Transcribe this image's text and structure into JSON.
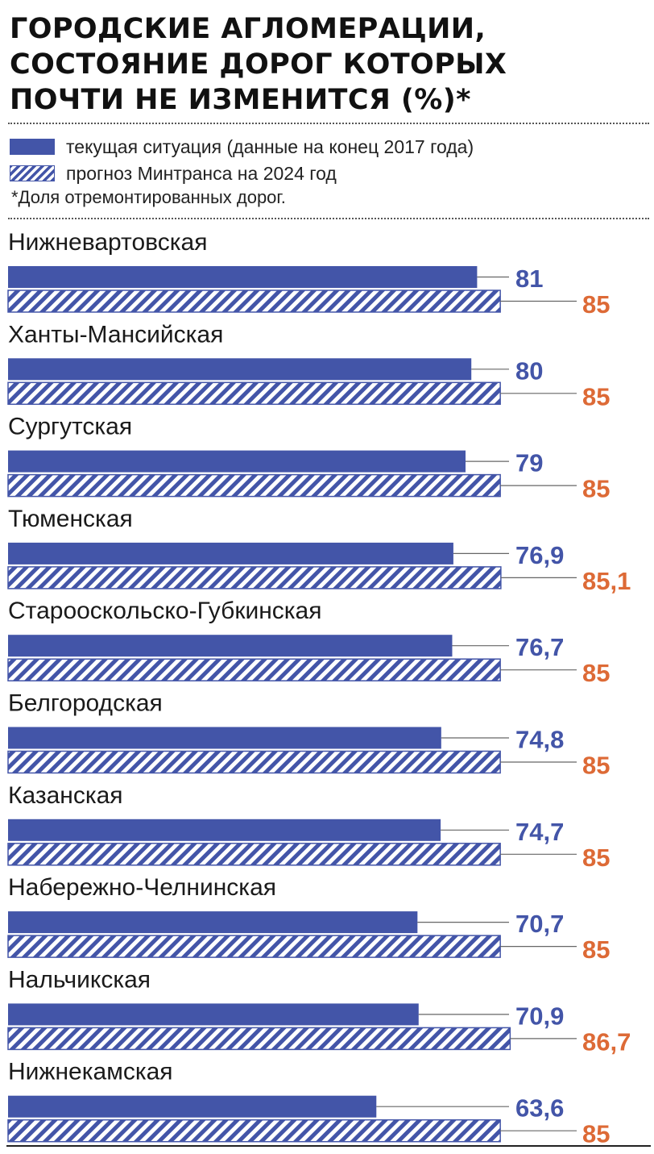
{
  "chart_data": {
    "type": "bar",
    "orientation": "horizontal",
    "title": [
      "ГОРОДСКИЕ АГЛОМЕРАЦИИ,",
      "СОСТОЯНИЕ ДОРОГ КОТОРЫХ",
      "ПОЧТИ НЕ ИЗМЕНИТСЯ (%)*"
    ],
    "note": "*Доля отремонтированных дорог.",
    "categories": [
      "Нижневартовская",
      "Ханты-Мансийская",
      "Сургутская",
      "Тюменская",
      "Старооскольско-Губкинская",
      "Белгородская",
      "Казанская",
      "Набережно-Челнинская",
      "Нальчикская",
      "Нижнекамская"
    ],
    "series": [
      {
        "name": "текущая ситуация (данные на конец 2017 года)",
        "values": [
          81,
          80,
          79,
          76.9,
          76.7,
          74.8,
          74.7,
          70.7,
          70.9,
          63.6
        ],
        "labels": [
          "81",
          "80",
          "79",
          "76,9",
          "76,7",
          "74,8",
          "74,7",
          "70,7",
          "70,9",
          "63,6"
        ],
        "color": "#4355a8",
        "style": "solid"
      },
      {
        "name": "прогноз Минтранса на 2024 год",
        "values": [
          85,
          85,
          85,
          85.1,
          85,
          85,
          85,
          85,
          86.7,
          85
        ],
        "labels": [
          "85",
          "85",
          "85",
          "85,1",
          "85",
          "85",
          "85",
          "85",
          "86,7",
          "85"
        ],
        "color": "#4355a8",
        "style": "hatched",
        "label_color": "#dd6a36"
      }
    ],
    "xlim": [
      0,
      86.7
    ],
    "grid": false,
    "legend_placement": "top-left"
  }
}
